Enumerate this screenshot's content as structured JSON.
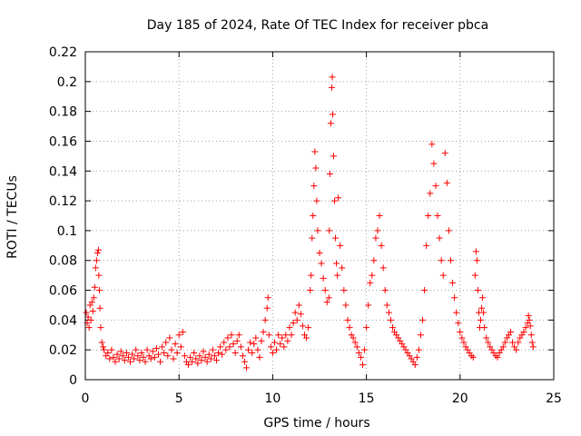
{
  "chart_data": {
    "type": "scatter",
    "title": "Day 185 of 2024, Rate Of TEC Index for receiver pbca",
    "xlabel": "GPS time / hours",
    "ylabel": "ROTI / TECUs",
    "xlim": [
      0,
      25
    ],
    "ylim": [
      0,
      0.22
    ],
    "xticks": [
      0,
      5,
      10,
      15,
      20,
      25
    ],
    "yticks": [
      0,
      0.02,
      0.04,
      0.06,
      0.08,
      0.1,
      0.12,
      0.14,
      0.16,
      0.18,
      0.2,
      0.22
    ],
    "grid": true,
    "marker": "+",
    "marker_color": "#ff0000",
    "series": [
      {
        "name": "ROTI",
        "points": [
          [
            0.05,
            0.045
          ],
          [
            0.1,
            0.038
          ],
          [
            0.15,
            0.042
          ],
          [
            0.2,
            0.035
          ],
          [
            0.25,
            0.05
          ],
          [
            0.3,
            0.04
          ],
          [
            0.35,
            0.052
          ],
          [
            0.4,
            0.046
          ],
          [
            0.45,
            0.055
          ],
          [
            0.5,
            0.062
          ],
          [
            0.55,
            0.075
          ],
          [
            0.6,
            0.08
          ],
          [
            0.65,
            0.085
          ],
          [
            0.7,
            0.087
          ],
          [
            0.72,
            0.07
          ],
          [
            0.75,
            0.06
          ],
          [
            0.78,
            0.048
          ],
          [
            0.82,
            0.035
          ],
          [
            0.88,
            0.025
          ],
          [
            0.95,
            0.022
          ],
          [
            1.0,
            0.02
          ],
          [
            1.1,
            0.016
          ],
          [
            1.2,
            0.018
          ],
          [
            1.3,
            0.014
          ],
          [
            1.4,
            0.02
          ],
          [
            1.5,
            0.015
          ],
          [
            1.6,
            0.012
          ],
          [
            1.7,
            0.017
          ],
          [
            1.8,
            0.014
          ],
          [
            1.9,
            0.019
          ],
          [
            2.0,
            0.016
          ],
          [
            2.1,
            0.013
          ],
          [
            2.2,
            0.018
          ],
          [
            2.3,
            0.015
          ],
          [
            2.4,
            0.012
          ],
          [
            2.5,
            0.017
          ],
          [
            2.6,
            0.014
          ],
          [
            2.7,
            0.02
          ],
          [
            2.8,
            0.016
          ],
          [
            2.9,
            0.013
          ],
          [
            3.0,
            0.018
          ],
          [
            3.1,
            0.015
          ],
          [
            3.2,
            0.012
          ],
          [
            3.3,
            0.02
          ],
          [
            3.4,
            0.016
          ],
          [
            3.5,
            0.014
          ],
          [
            3.6,
            0.019
          ],
          [
            3.7,
            0.015
          ],
          [
            3.8,
            0.021
          ],
          [
            3.9,
            0.017
          ],
          [
            4.0,
            0.012
          ],
          [
            4.1,
            0.022
          ],
          [
            4.2,
            0.018
          ],
          [
            4.3,
            0.025
          ],
          [
            4.4,
            0.016
          ],
          [
            4.5,
            0.028
          ],
          [
            4.6,
            0.02
          ],
          [
            4.7,
            0.014
          ],
          [
            4.8,
            0.024
          ],
          [
            4.9,
            0.018
          ],
          [
            5.0,
            0.03
          ],
          [
            5.1,
            0.022
          ],
          [
            5.2,
            0.032
          ],
          [
            5.3,
            0.016
          ],
          [
            5.4,
            0.012
          ],
          [
            5.5,
            0.01
          ],
          [
            5.6,
            0.015
          ],
          [
            5.7,
            0.012
          ],
          [
            5.8,
            0.018
          ],
          [
            5.9,
            0.014
          ],
          [
            6.0,
            0.011
          ],
          [
            6.1,
            0.016
          ],
          [
            6.2,
            0.013
          ],
          [
            6.3,
            0.019
          ],
          [
            6.4,
            0.015
          ],
          [
            6.5,
            0.012
          ],
          [
            6.6,
            0.017
          ],
          [
            6.7,
            0.014
          ],
          [
            6.8,
            0.02
          ],
          [
            6.9,
            0.016
          ],
          [
            7.0,
            0.013
          ],
          [
            7.1,
            0.018
          ],
          [
            7.2,
            0.022
          ],
          [
            7.3,
            0.017
          ],
          [
            7.4,
            0.025
          ],
          [
            7.5,
            0.02
          ],
          [
            7.6,
            0.028
          ],
          [
            7.7,
            0.022
          ],
          [
            7.8,
            0.03
          ],
          [
            7.9,
            0.024
          ],
          [
            8.0,
            0.018
          ],
          [
            8.1,
            0.026
          ],
          [
            8.2,
            0.03
          ],
          [
            8.3,
            0.022
          ],
          [
            8.4,
            0.016
          ],
          [
            8.5,
            0.012
          ],
          [
            8.6,
            0.008
          ],
          [
            8.7,
            0.02
          ],
          [
            8.8,
            0.025
          ],
          [
            8.9,
            0.018
          ],
          [
            9.0,
            0.024
          ],
          [
            9.1,
            0.028
          ],
          [
            9.2,
            0.02
          ],
          [
            9.3,
            0.015
          ],
          [
            9.4,
            0.026
          ],
          [
            9.5,
            0.032
          ],
          [
            9.6,
            0.04
          ],
          [
            9.7,
            0.048
          ],
          [
            9.75,
            0.055
          ],
          [
            9.8,
            0.03
          ],
          [
            9.9,
            0.022
          ],
          [
            10.0,
            0.018
          ],
          [
            10.1,
            0.025
          ],
          [
            10.2,
            0.02
          ],
          [
            10.3,
            0.03
          ],
          [
            10.4,
            0.024
          ],
          [
            10.5,
            0.028
          ],
          [
            10.6,
            0.022
          ],
          [
            10.7,
            0.03
          ],
          [
            10.8,
            0.026
          ],
          [
            10.9,
            0.035
          ],
          [
            11.0,
            0.03
          ],
          [
            11.1,
            0.038
          ],
          [
            11.2,
            0.045
          ],
          [
            11.3,
            0.04
          ],
          [
            11.4,
            0.05
          ],
          [
            11.5,
            0.044
          ],
          [
            11.6,
            0.036
          ],
          [
            11.7,
            0.03
          ],
          [
            11.8,
            0.028
          ],
          [
            11.9,
            0.035
          ],
          [
            12.0,
            0.06
          ],
          [
            12.05,
            0.07
          ],
          [
            12.1,
            0.095
          ],
          [
            12.15,
            0.11
          ],
          [
            12.2,
            0.13
          ],
          [
            12.25,
            0.153
          ],
          [
            12.3,
            0.142
          ],
          [
            12.35,
            0.12
          ],
          [
            12.4,
            0.1
          ],
          [
            12.5,
            0.085
          ],
          [
            12.6,
            0.078
          ],
          [
            12.7,
            0.068
          ],
          [
            12.8,
            0.06
          ],
          [
            12.9,
            0.052
          ],
          [
            13.0,
            0.055
          ],
          [
            13.02,
            0.1
          ],
          [
            13.05,
            0.138
          ],
          [
            13.1,
            0.172
          ],
          [
            13.15,
            0.196
          ],
          [
            13.18,
            0.203
          ],
          [
            13.2,
            0.178
          ],
          [
            13.25,
            0.15
          ],
          [
            13.3,
            0.12
          ],
          [
            13.35,
            0.095
          ],
          [
            13.4,
            0.078
          ],
          [
            13.45,
            0.07
          ],
          [
            13.5,
            0.122
          ],
          [
            13.6,
            0.09
          ],
          [
            13.7,
            0.075
          ],
          [
            13.8,
            0.06
          ],
          [
            13.9,
            0.05
          ],
          [
            14.0,
            0.04
          ],
          [
            14.1,
            0.035
          ],
          [
            14.2,
            0.03
          ],
          [
            14.3,
            0.028
          ],
          [
            14.4,
            0.025
          ],
          [
            14.5,
            0.022
          ],
          [
            14.6,
            0.018
          ],
          [
            14.7,
            0.015
          ],
          [
            14.8,
            0.01
          ],
          [
            14.9,
            0.02
          ],
          [
            15.0,
            0.035
          ],
          [
            15.1,
            0.05
          ],
          [
            15.2,
            0.065
          ],
          [
            15.3,
            0.07
          ],
          [
            15.4,
            0.08
          ],
          [
            15.5,
            0.095
          ],
          [
            15.6,
            0.1
          ],
          [
            15.7,
            0.11
          ],
          [
            15.8,
            0.09
          ],
          [
            15.9,
            0.075
          ],
          [
            16.0,
            0.06
          ],
          [
            16.1,
            0.05
          ],
          [
            16.2,
            0.045
          ],
          [
            16.3,
            0.04
          ],
          [
            16.4,
            0.035
          ],
          [
            16.5,
            0.032
          ],
          [
            16.6,
            0.03
          ],
          [
            16.7,
            0.028
          ],
          [
            16.8,
            0.026
          ],
          [
            16.9,
            0.024
          ],
          [
            17.0,
            0.022
          ],
          [
            17.1,
            0.02
          ],
          [
            17.2,
            0.018
          ],
          [
            17.3,
            0.016
          ],
          [
            17.4,
            0.014
          ],
          [
            17.5,
            0.012
          ],
          [
            17.6,
            0.01
          ],
          [
            17.7,
            0.015
          ],
          [
            17.8,
            0.02
          ],
          [
            17.9,
            0.03
          ],
          [
            18.0,
            0.04
          ],
          [
            18.1,
            0.06
          ],
          [
            18.2,
            0.09
          ],
          [
            18.3,
            0.11
          ],
          [
            18.4,
            0.125
          ],
          [
            18.5,
            0.158
          ],
          [
            18.6,
            0.145
          ],
          [
            18.7,
            0.13
          ],
          [
            18.8,
            0.11
          ],
          [
            18.9,
            0.095
          ],
          [
            19.0,
            0.08
          ],
          [
            19.1,
            0.07
          ],
          [
            19.2,
            0.152
          ],
          [
            19.3,
            0.132
          ],
          [
            19.4,
            0.1
          ],
          [
            19.5,
            0.08
          ],
          [
            19.6,
            0.065
          ],
          [
            19.7,
            0.055
          ],
          [
            19.8,
            0.045
          ],
          [
            19.9,
            0.038
          ],
          [
            20.0,
            0.032
          ],
          [
            20.1,
            0.028
          ],
          [
            20.2,
            0.025
          ],
          [
            20.3,
            0.022
          ],
          [
            20.4,
            0.02
          ],
          [
            20.5,
            0.018
          ],
          [
            20.6,
            0.016
          ],
          [
            20.7,
            0.015
          ],
          [
            20.8,
            0.07
          ],
          [
            20.85,
            0.086
          ],
          [
            20.9,
            0.08
          ],
          [
            20.95,
            0.06
          ],
          [
            21.0,
            0.045
          ],
          [
            21.05,
            0.035
          ],
          [
            21.1,
            0.04
          ],
          [
            21.15,
            0.048
          ],
          [
            21.2,
            0.055
          ],
          [
            21.25,
            0.045
          ],
          [
            21.3,
            0.035
          ],
          [
            21.4,
            0.028
          ],
          [
            21.5,
            0.025
          ],
          [
            21.6,
            0.022
          ],
          [
            21.7,
            0.02
          ],
          [
            21.8,
            0.018
          ],
          [
            21.9,
            0.016
          ],
          [
            22.0,
            0.015
          ],
          [
            22.1,
            0.018
          ],
          [
            22.2,
            0.02
          ],
          [
            22.3,
            0.022
          ],
          [
            22.4,
            0.025
          ],
          [
            22.5,
            0.028
          ],
          [
            22.6,
            0.03
          ],
          [
            22.7,
            0.032
          ],
          [
            22.8,
            0.025
          ],
          [
            22.9,
            0.022
          ],
          [
            23.0,
            0.02
          ],
          [
            23.1,
            0.025
          ],
          [
            23.2,
            0.028
          ],
          [
            23.3,
            0.03
          ],
          [
            23.4,
            0.032
          ],
          [
            23.5,
            0.035
          ],
          [
            23.6,
            0.038
          ],
          [
            23.65,
            0.043
          ],
          [
            23.7,
            0.04
          ],
          [
            23.75,
            0.036
          ],
          [
            23.8,
            0.03
          ],
          [
            23.85,
            0.025
          ],
          [
            23.9,
            0.022
          ]
        ]
      }
    ]
  }
}
